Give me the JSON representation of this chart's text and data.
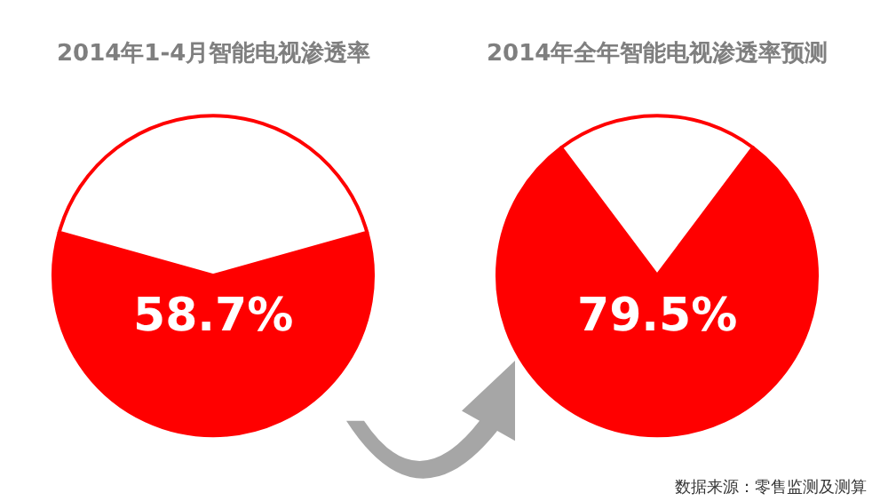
{
  "chart_data": [
    {
      "type": "pie",
      "title": "2014年1-4月智能电视渗透率",
      "categories": [
        null,
        null
      ],
      "values": [
        58.7,
        41.3
      ],
      "colors": [
        "#ff0000",
        "#ffffff"
      ],
      "value_labels": [
        "58.7%",
        null
      ]
    },
    {
      "type": "pie",
      "title": "2014年全年智能电视渗透率预测",
      "categories": [
        null,
        null
      ],
      "values": [
        79.5,
        20.5
      ],
      "colors": [
        "#ff0000",
        "#ffffff"
      ],
      "value_labels": [
        "79.5%",
        null
      ],
      "annotations": [
        "数据来源：零售监测及测算"
      ]
    }
  ]
}
